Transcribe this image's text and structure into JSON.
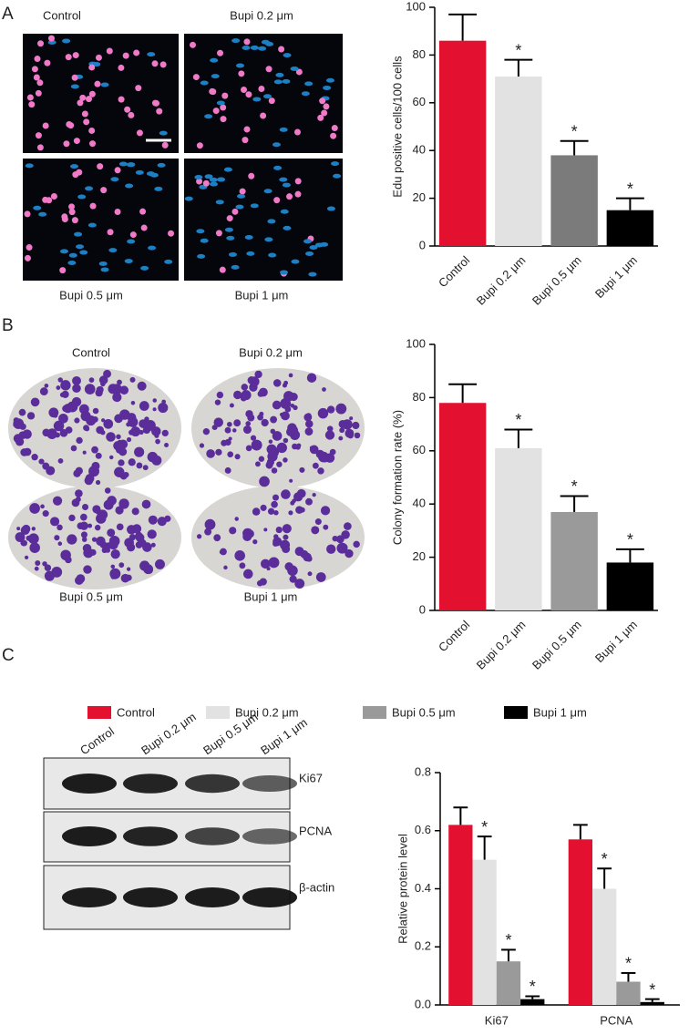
{
  "chart_data": [
    {
      "type": "bar",
      "ylabel": "Edu positive cells/100 cells",
      "categories": [
        "Control",
        "Bupi 0.2 μm",
        "Bupi 0.5 μm",
        "Bupi 1 μm"
      ],
      "values": [
        86,
        71,
        38,
        15
      ],
      "errors": [
        11,
        7,
        6,
        5
      ],
      "colors": [
        "#e3102f",
        "#e2e2e2",
        "#7b7b7b",
        "#000000"
      ],
      "significance": [
        null,
        "*",
        "*",
        "*"
      ],
      "ylim": [
        0,
        100
      ],
      "yticks": [
        0,
        20,
        40,
        60,
        80,
        100
      ]
    },
    {
      "type": "bar",
      "ylabel": "Colony formation rate (%)",
      "categories": [
        "Control",
        "Bupi 0.2 μm",
        "Bupi 0.5 μm",
        "Bupi 1 μm"
      ],
      "values": [
        78,
        61,
        37,
        18
      ],
      "errors": [
        7,
        7,
        6,
        5
      ],
      "colors": [
        "#e3102f",
        "#e2e2e2",
        "#9a9a9a",
        "#000000"
      ],
      "significance": [
        null,
        "*",
        "*",
        "*"
      ],
      "ylim": [
        0,
        100
      ],
      "yticks": [
        0,
        20,
        40,
        60,
        80,
        100
      ]
    },
    {
      "type": "grouped-bar",
      "ylabel": "Relative protein level",
      "categories": [
        "Ki67",
        "PCNA"
      ],
      "series": [
        {
          "name": "Control",
          "color": "#e3102f",
          "values": [
            0.62,
            0.57
          ],
          "errors": [
            0.06,
            0.05
          ],
          "significance": [
            null,
            null
          ]
        },
        {
          "name": "Bupi 0.2 μm",
          "color": "#e2e2e2",
          "values": [
            0.5,
            0.4
          ],
          "errors": [
            0.08,
            0.07
          ],
          "significance": [
            "*",
            "*"
          ]
        },
        {
          "name": "Bupi 0.5 μm",
          "color": "#9a9a9a",
          "values": [
            0.15,
            0.08
          ],
          "errors": [
            0.04,
            0.03
          ],
          "significance": [
            "*",
            "*"
          ]
        },
        {
          "name": "Bupi 1 μm",
          "color": "#000000",
          "values": [
            0.02,
            0.01
          ],
          "errors": [
            0.01,
            0.01
          ],
          "significance": [
            "*",
            "*"
          ]
        }
      ],
      "ylim": [
        0,
        0.8
      ],
      "yticks": [
        {
          "value": 0,
          "label": "0.0"
        },
        0.2,
        0.4,
        0.6,
        0.8
      ]
    }
  ],
  "panels": {
    "labels": [
      "A",
      "B",
      "C"
    ],
    "edu_images": [
      "Control",
      "Bupi 0.2 μm",
      "Bupi 0.5 μm",
      "Bupi 1 μm"
    ],
    "colony_images": [
      "Control",
      "Bupi 0.2 μm",
      "Bupi 0.5 μm",
      "Bupi 1 μm"
    ],
    "blot_lanes": [
      "Control",
      "Bupi 0.2 μm",
      "Bupi 0.5 μm",
      "Bupi 1 μm"
    ],
    "blot_rows": [
      "Ki67",
      "PCNA",
      "β-actin"
    ]
  }
}
